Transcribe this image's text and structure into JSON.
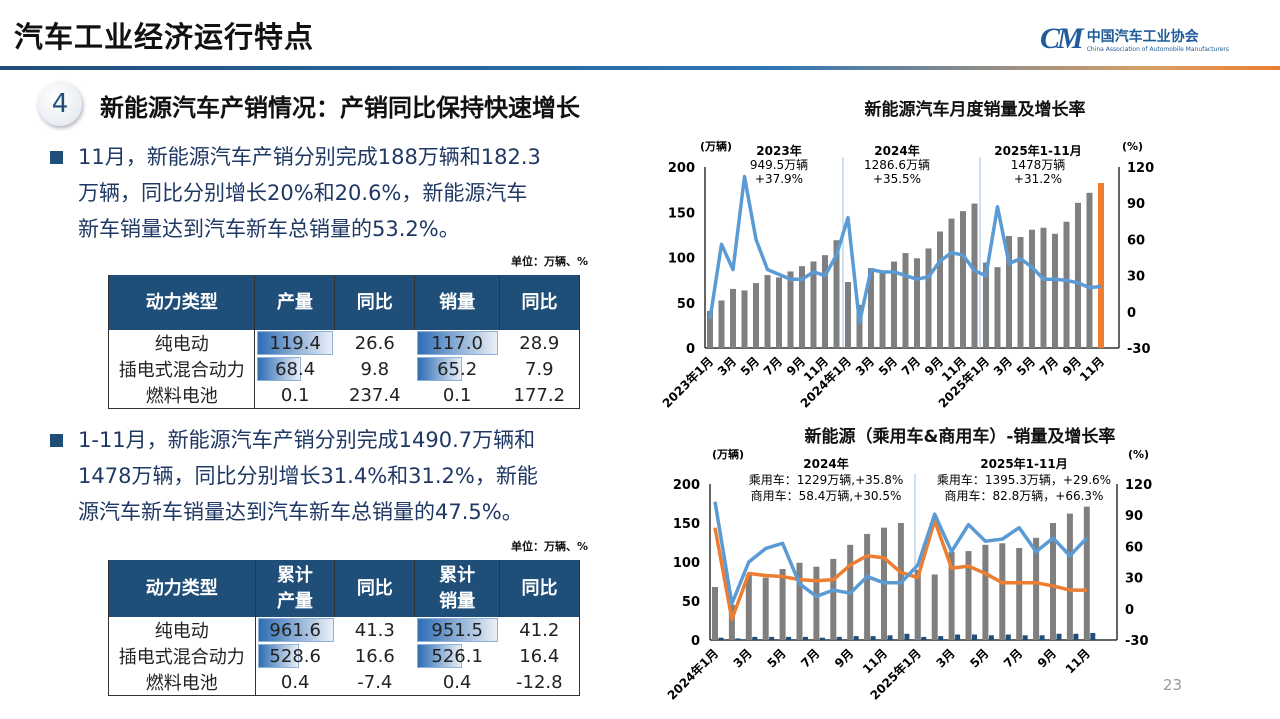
{
  "header": {
    "title": "汽车工业经济运行特点",
    "logo_cn": "中国汽车工业协会",
    "logo_en": "China Association of Automobile Manufacturers",
    "logo_mark": "CM"
  },
  "section": {
    "number": "4",
    "heading": "新能源汽车产销情况：产销同比保持快速增长"
  },
  "bullet1": [
    "11月，新能源汽车产销分别完成188万辆和182.3",
    "万辆，同比分别增长20%和20.6%，新能源汽车",
    "新车销量达到汽车新车总销量的53.2%。"
  ],
  "bullet2": [
    "1-11月，新能源汽车产销分别完成1490.7万辆和",
    "1478万辆，同比分别增长31.4%和31.2%，新能",
    "源汽车新车销量达到汽车新车总销量的47.5%。"
  ],
  "table1": {
    "unit": "单位：万辆、%",
    "headers": [
      "动力类型",
      "产量",
      "同比",
      "销量",
      "同比"
    ],
    "rows": [
      [
        "纯电动",
        "119.4",
        "26.6",
        "117.0",
        "28.9"
      ],
      [
        "插电式混合动力",
        "68.4",
        "9.8",
        "65.2",
        "7.9"
      ],
      [
        "燃料电池",
        "0.1",
        "237.4",
        "0.1",
        "177.2"
      ]
    ]
  },
  "table2": {
    "unit": "单位：万辆、%",
    "headers": [
      "动力类型",
      "累计\n产量",
      "同比",
      "累计\n销量",
      "同比"
    ],
    "rows": [
      [
        "纯电动",
        "961.6",
        "41.3",
        "951.5",
        "41.2"
      ],
      [
        "插电式混合动力",
        "528.6",
        "16.6",
        "526.1",
        "16.4"
      ],
      [
        "燃料电池",
        "0.4",
        "-7.4",
        "0.4",
        "-12.8"
      ]
    ]
  },
  "page_number": "23",
  "chart_data": [
    {
      "type": "bar+line",
      "title": "新能源汽车月度销量及增长率",
      "ylabel": "(万辆)",
      "y2label": "(%)",
      "ylim": [
        0,
        200
      ],
      "y2lim": [
        -30,
        120
      ],
      "yticks": [
        "0",
        "50",
        "100",
        "150",
        "200"
      ],
      "y2ticks": [
        "-30",
        "0",
        "30",
        "60",
        "90",
        "120"
      ],
      "xticklabels": [
        "2023年1月",
        "3月",
        "5月",
        "7月",
        "9月",
        "11月",
        "2024年1月",
        "3月",
        "5月",
        "7月",
        "9月",
        "11月",
        "2025年1月",
        "3月",
        "5月",
        "7月",
        "9月",
        "11月"
      ],
      "annotations": [
        [
          "2023年",
          "949.5万辆",
          "+37.9%"
        ],
        [
          "2024年",
          "1286.6万辆",
          "+35.5%"
        ],
        [
          "2025年1-11月",
          "1478万辆",
          "+31.2%"
        ]
      ],
      "colors": {
        "bars": "#7F7F7F",
        "highlight": "#ED7D31",
        "line": "#5B9BD5"
      },
      "sales": [
        41,
        52.5,
        65.3,
        63.6,
        71.7,
        80.6,
        78,
        84.6,
        90.4,
        95.6,
        102.6,
        119.1,
        72.9,
        47.7,
        88.3,
        85,
        95.5,
        104.9,
        99.1,
        110,
        128.7,
        143,
        151.2,
        159.6,
        94.4,
        89.3,
        123.7,
        122.6,
        130.7,
        132.9,
        126.2,
        139.5,
        160.4,
        171.5,
        182.3
      ],
      "growth": [
        -6,
        56,
        35,
        112,
        60,
        35,
        31,
        27,
        27,
        33,
        30,
        47,
        78,
        -9,
        35,
        33,
        33,
        30,
        27,
        29,
        42,
        49,
        47,
        34,
        30,
        87,
        40,
        44,
        37,
        27,
        27,
        26,
        24,
        20,
        21
      ]
    },
    {
      "type": "bar+line",
      "title": "新能源（乘用车&商用车）-销量及增长率",
      "ylabel": "(万辆)",
      "y2label": "(%)",
      "ylim": [
        0,
        200
      ],
      "y2lim": [
        -30,
        120
      ],
      "yticks": [
        "0",
        "50",
        "100",
        "150",
        "200"
      ],
      "y2ticks": [
        "-30",
        "0",
        "30",
        "60",
        "90",
        "120"
      ],
      "xticklabels": [
        "2024年1月",
        "3月",
        "5月",
        "7月",
        "9月",
        "11月",
        "2025年1月",
        "3月",
        "5月",
        "7月",
        "9月",
        "11月"
      ],
      "annotations": [
        [
          "2024年",
          "乘用车：1229万辆,+35.8%",
          "商用车：58.4万辆,+30.5%"
        ],
        [
          "2025年1-11月",
          "乘用车：1395.3万辆，+29.6%",
          "商用车：82.8万辆，+66.3%"
        ]
      ],
      "colors": {
        "passenger_bars": "#7F7F7F",
        "commercial_bars": "#1F4E79",
        "blue_line": "#5B9BD5",
        "orange_line": "#ED7D31"
      },
      "passenger_sales": [
        68,
        45,
        84,
        80,
        91,
        99,
        94,
        104,
        122,
        136,
        144,
        150,
        90,
        84,
        113,
        114,
        122,
        124,
        118,
        131,
        150,
        162,
        171
      ],
      "commercial_sales": [
        3,
        2,
        4,
        4,
        4,
        4,
        3,
        4,
        5,
        5,
        6,
        8,
        4,
        5,
        7,
        7,
        6,
        7,
        6,
        6,
        8,
        8,
        9
      ],
      "blue_line": [
        103,
        5,
        45,
        58,
        63,
        24,
        12,
        18,
        15,
        31,
        25,
        25,
        42,
        91,
        55,
        81,
        65,
        67,
        78,
        55,
        68,
        51,
        68
      ],
      "orange_line": [
        78,
        -10,
        34,
        32,
        31,
        28,
        27,
        28,
        42,
        51,
        49,
        35,
        30,
        85,
        39,
        41,
        34,
        25,
        25,
        25,
        22,
        18,
        18
      ]
    }
  ]
}
